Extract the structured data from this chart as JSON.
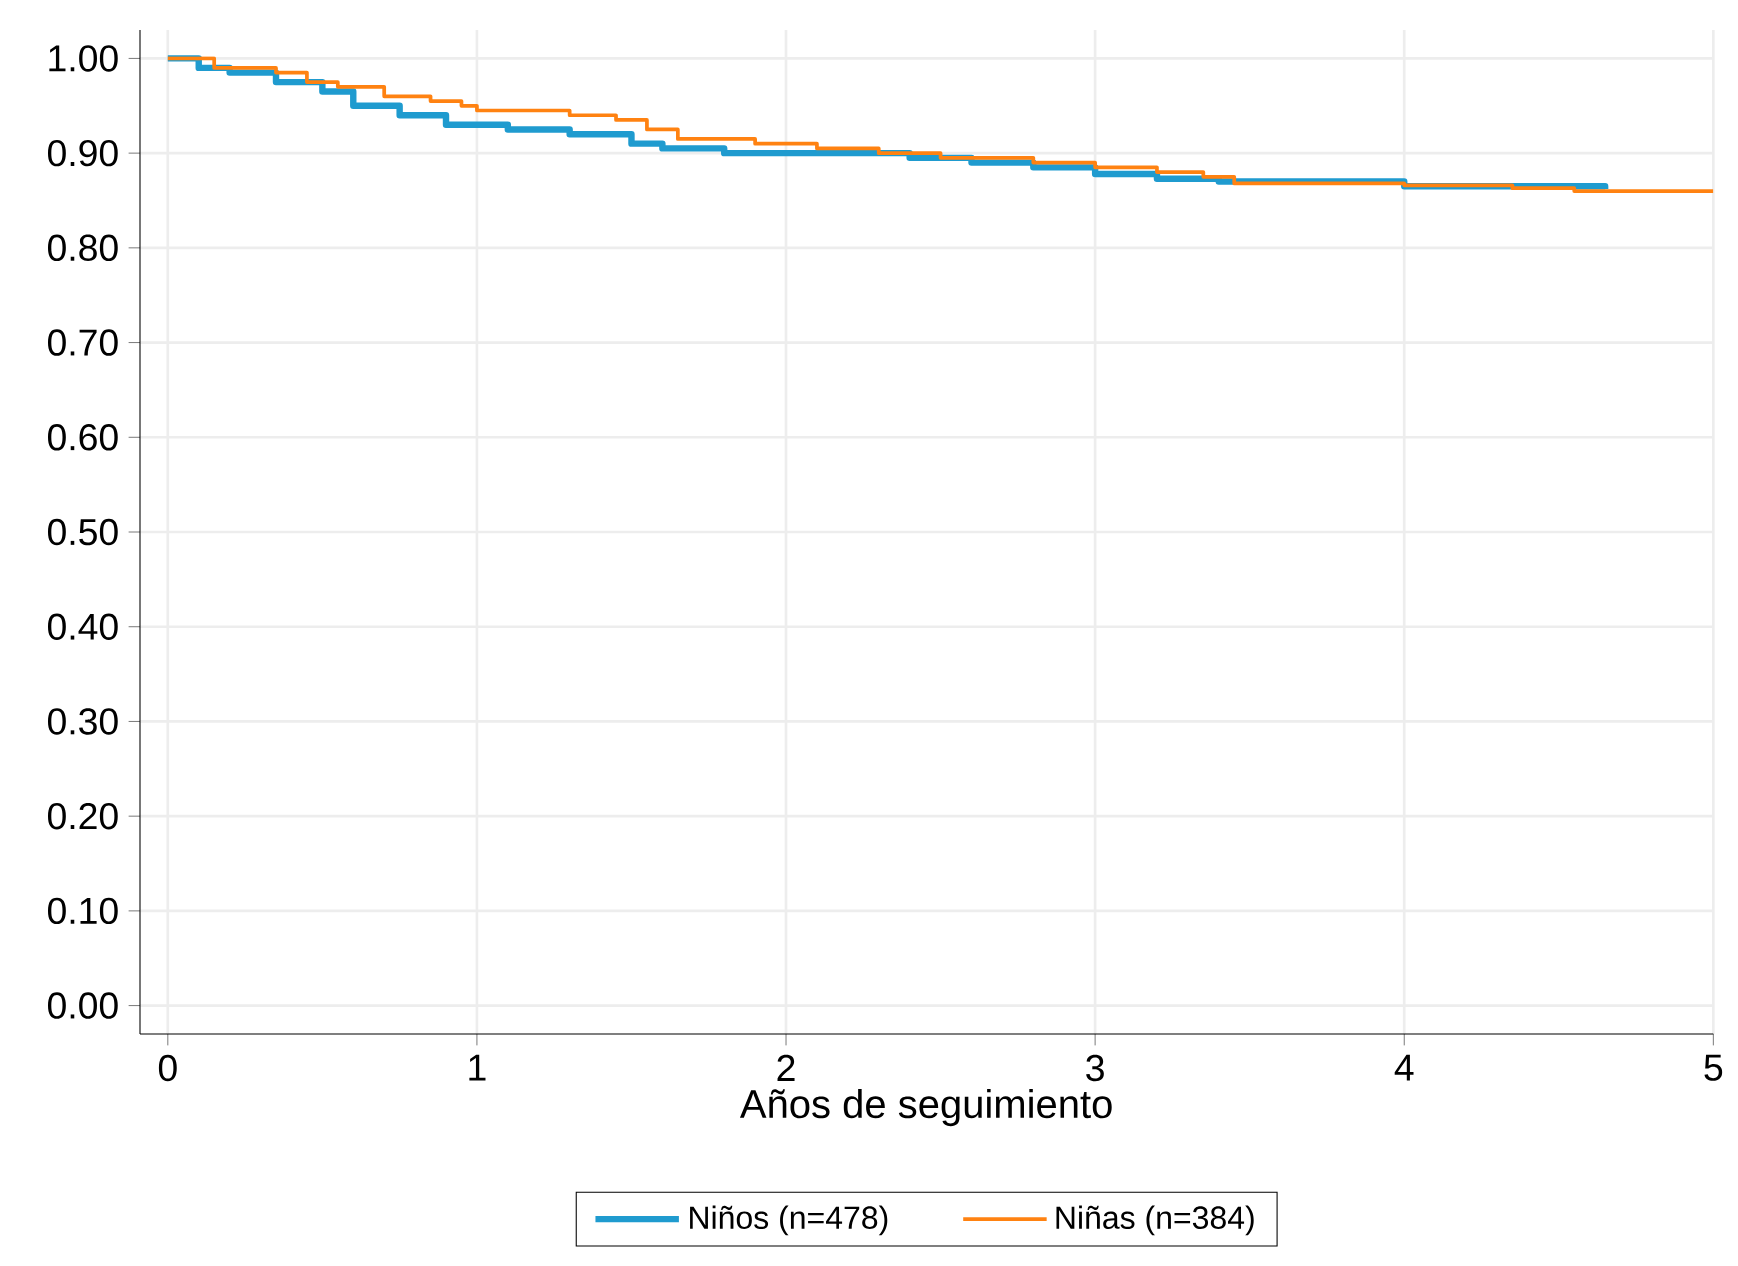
{
  "chart_data": {
    "type": "step",
    "xlabel": "Años de seguimiento",
    "xlim": [
      -0.09,
      5
    ],
    "xticks": [
      0,
      1,
      2,
      3,
      4,
      5
    ],
    "ylim": [
      -0.03,
      1.03
    ],
    "yticks": [
      {
        "value": 0,
        "label": "0.00"
      },
      {
        "value": 0.1,
        "label": "0.10"
      },
      {
        "value": 0.2,
        "label": "0.20"
      },
      {
        "value": 0.3,
        "label": "0.30"
      },
      {
        "value": 0.4,
        "label": "0.40"
      },
      {
        "value": 0.5,
        "label": "0.50"
      },
      {
        "value": 0.6,
        "label": "0.60"
      },
      {
        "value": 0.7,
        "label": "0.70"
      },
      {
        "value": 0.8,
        "label": "0.80"
      },
      {
        "value": 0.9,
        "label": "0.90"
      },
      {
        "value": 1,
        "label": "1.00"
      }
    ],
    "grid": true,
    "legend": "bottom",
    "marker": "none",
    "line_style": "solid",
    "series": [
      {
        "name": "Niños (n=478)",
        "color": "#1f9bcf",
        "x": [
          0,
          0.1,
          0.2,
          0.35,
          0.5,
          0.6,
          0.75,
          0.9,
          1.1,
          1.3,
          1.5,
          1.6,
          1.8,
          2.4,
          2.6,
          2.8,
          3.0,
          3.2,
          3.4,
          4.0,
          4.65
        ],
        "values": [
          1.0,
          0.99,
          0.985,
          0.975,
          0.965,
          0.95,
          0.94,
          0.93,
          0.925,
          0.92,
          0.91,
          0.905,
          0.9,
          0.895,
          0.89,
          0.885,
          0.878,
          0.873,
          0.87,
          0.865,
          0.862
        ]
      },
      {
        "name": "Niñas (n=384)",
        "color": "#ff8211",
        "x": [
          0,
          0.15,
          0.35,
          0.45,
          0.55,
          0.7,
          0.85,
          0.95,
          1.0,
          1.3,
          1.45,
          1.55,
          1.65,
          1.9,
          2.1,
          2.3,
          2.5,
          2.8,
          3.0,
          3.2,
          3.35,
          3.45,
          4.0,
          4.35,
          4.55,
          5.0
        ],
        "values": [
          1.0,
          0.99,
          0.985,
          0.975,
          0.97,
          0.96,
          0.955,
          0.95,
          0.945,
          0.94,
          0.935,
          0.925,
          0.915,
          0.91,
          0.905,
          0.9,
          0.895,
          0.89,
          0.885,
          0.88,
          0.875,
          0.868,
          0.866,
          0.863,
          0.86,
          0.86
        ]
      }
    ]
  }
}
